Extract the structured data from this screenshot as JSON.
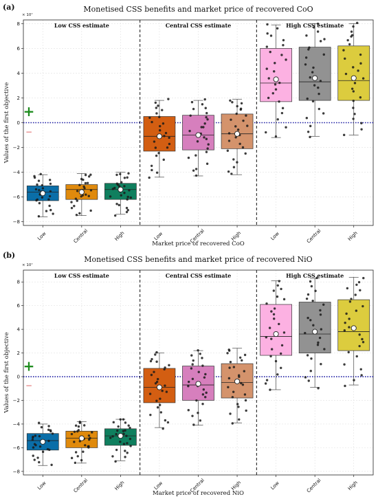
{
  "figure": {
    "legend_symbols": {
      "plus": "+",
      "minus": "−",
      "plus_color": "#1e8c1e",
      "minus_color": "#e06666"
    }
  },
  "chart_data": [
    {
      "type": "box",
      "panel_label": "(a)",
      "title": "Monetised CSS benefits and market price of recovered CoO",
      "xlabel": "Market price of recovered CoO",
      "ylabel": "Values of the first objective",
      "y_scale_label": "× 10⁷",
      "ylim": [
        -8.3,
        8.3
      ],
      "yticks": [
        -8,
        -6,
        -4,
        -2,
        0,
        2,
        4,
        6,
        8
      ],
      "grid": true,
      "reference_line": {
        "y": 0,
        "style": "dotted",
        "color": "#1a1aa6"
      },
      "groups": [
        {
          "label": "Low CSS estimate",
          "boxes": [
            {
              "category": "Low",
              "color": "#0a6ea8",
              "min": -7.6,
              "q1": -6.3,
              "median": -5.6,
              "q3": -5.1,
              "max": -4.2,
              "mean": -5.7
            },
            {
              "category": "Central",
              "color": "#e08a0c",
              "min": -7.5,
              "q1": -6.2,
              "median": -5.4,
              "q3": -5.0,
              "max": -4.1,
              "mean": -5.6
            },
            {
              "category": "High",
              "color": "#0f7f5e",
              "min": -7.4,
              "q1": -6.2,
              "median": -5.4,
              "q3": -4.9,
              "max": -4.0,
              "mean": -5.4
            }
          ]
        },
        {
          "label": "Central CSS estimate",
          "boxes": [
            {
              "category": "Low",
              "color": "#d35e12",
              "min": -4.4,
              "q1": -2.3,
              "median": -1.1,
              "q3": 0.5,
              "max": 1.8,
              "mean": -1.1
            },
            {
              "category": "Central",
              "color": "#d67fbd",
              "min": -4.3,
              "q1": -2.2,
              "median": -1.0,
              "q3": 0.6,
              "max": 1.8,
              "mean": -1.0
            },
            {
              "category": "High",
              "color": "#d4936c",
              "min": -4.2,
              "q1": -2.1,
              "median": -0.9,
              "q3": 0.7,
              "max": 1.9,
              "mean": -0.9
            }
          ]
        },
        {
          "label": "High CSS estimate",
          "boxes": [
            {
              "category": "Low",
              "color": "#fcb1e2",
              "min": -1.2,
              "q1": 1.7,
              "median": 3.2,
              "q3": 6.0,
              "max": 7.9,
              "mean": 3.5
            },
            {
              "category": "Central",
              "color": "#929292",
              "min": -1.1,
              "q1": 1.8,
              "median": 3.3,
              "q3": 6.1,
              "max": 8.0,
              "mean": 3.6
            },
            {
              "category": "High",
              "color": "#dccc3e",
              "min": -1.0,
              "q1": 1.8,
              "median": 3.4,
              "q3": 6.2,
              "max": 8.0,
              "mean": 3.6
            }
          ]
        }
      ]
    },
    {
      "type": "box",
      "panel_label": "(b)",
      "title": "Monetised CSS benefits and market price of recovered NiO",
      "xlabel": "Market price of recovered NiO",
      "ylabel": "Values of the first objective",
      "y_scale_label": "× 10⁷",
      "ylim": [
        -8.3,
        9.0
      ],
      "yticks": [
        -8,
        -6,
        -4,
        -2,
        0,
        2,
        4,
        6,
        8
      ],
      "grid": true,
      "reference_line": {
        "y": 0,
        "style": "dotted",
        "color": "#1a1aa6"
      },
      "groups": [
        {
          "label": "Low CSS estimate",
          "boxes": [
            {
              "category": "Low",
              "color": "#0a6ea8",
              "min": -7.5,
              "q1": -6.2,
              "median": -5.4,
              "q3": -4.8,
              "max": -4.0,
              "mean": -5.5
            },
            {
              "category": "Central",
              "color": "#e08a0c",
              "min": -7.3,
              "q1": -6.0,
              "median": -5.2,
              "q3": -4.6,
              "max": -3.8,
              "mean": -5.2
            },
            {
              "category": "High",
              "color": "#0f7f5e",
              "min": -7.1,
              "q1": -5.8,
              "median": -5.0,
              "q3": -4.4,
              "max": -3.6,
              "mean": -5.0
            }
          ]
        },
        {
          "label": "Central CSS estimate",
          "boxes": [
            {
              "category": "Low",
              "color": "#d35e12",
              "min": -4.3,
              "q1": -2.2,
              "median": -0.9,
              "q3": 0.7,
              "max": 2.0,
              "mean": -0.9
            },
            {
              "category": "Central",
              "color": "#d67fbd",
              "min": -4.1,
              "q1": -2.0,
              "median": -0.7,
              "q3": 0.9,
              "max": 2.2,
              "mean": -0.6
            },
            {
              "category": "High",
              "color": "#d4936c",
              "min": -3.9,
              "q1": -1.8,
              "median": -0.5,
              "q3": 1.1,
              "max": 2.4,
              "mean": -0.4
            }
          ]
        },
        {
          "label": "High CSS estimate",
          "boxes": [
            {
              "category": "Low",
              "color": "#fcb1e2",
              "min": -1.1,
              "q1": 1.8,
              "median": 3.4,
              "q3": 6.1,
              "max": 8.1,
              "mean": 3.6
            },
            {
              "category": "Central",
              "color": "#929292",
              "min": -0.9,
              "q1": 2.0,
              "median": 3.6,
              "q3": 6.3,
              "max": 8.3,
              "mean": 3.8
            },
            {
              "category": "High",
              "color": "#dccc3e",
              "min": -0.7,
              "q1": 2.2,
              "median": 3.8,
              "q3": 6.5,
              "max": 8.4,
              "mean": 4.1
            }
          ]
        }
      ]
    }
  ]
}
